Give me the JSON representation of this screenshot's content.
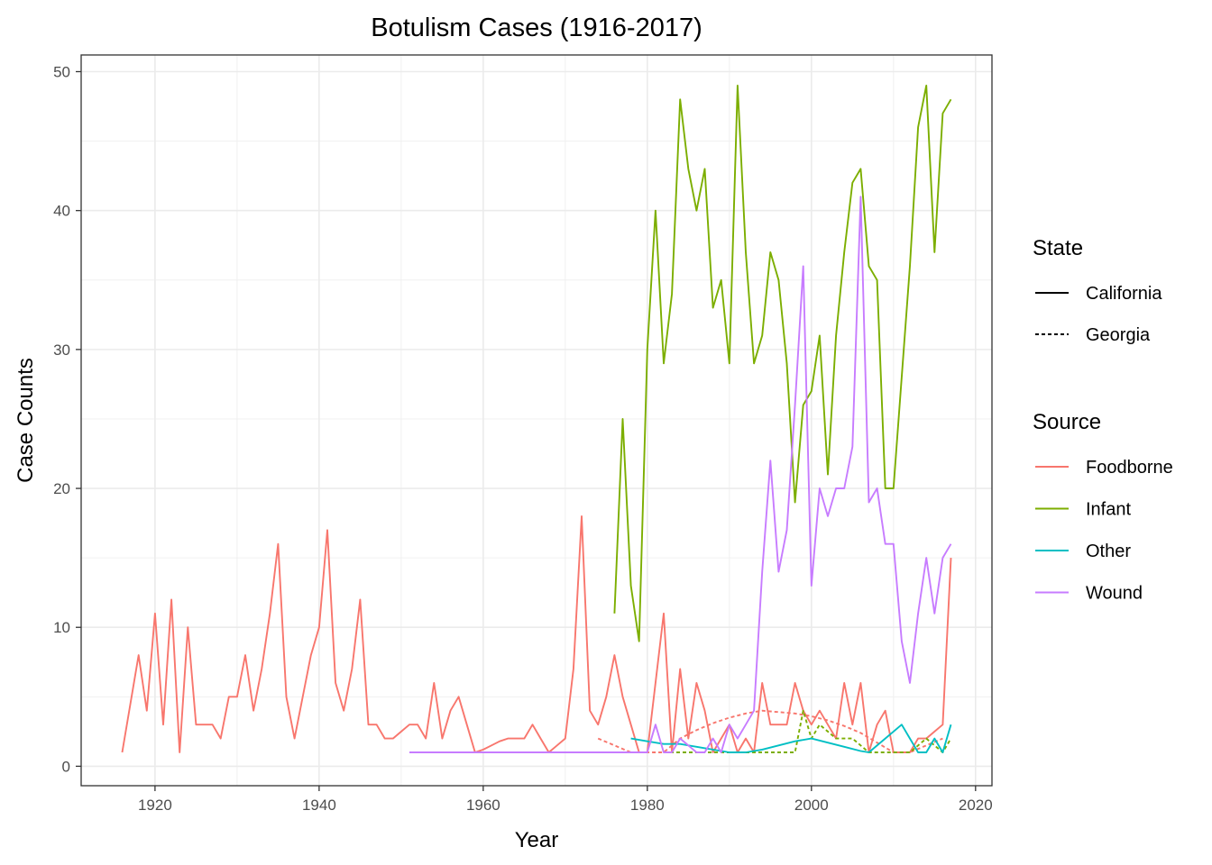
{
  "chart_data": {
    "type": "line",
    "title": "Botulism Cases (1916-2017)",
    "xlabel": "Year",
    "ylabel": "Case Counts",
    "xlim": [
      1911,
      2022
    ],
    "ylim": [
      -1.4,
      51.2
    ],
    "x_ticks": [
      1920,
      1940,
      1960,
      1980,
      2000,
      2020
    ],
    "y_ticks": [
      0,
      10,
      20,
      30,
      40,
      50
    ],
    "grid": true,
    "legends": [
      {
        "title": "State",
        "entries": [
          {
            "label": "California",
            "linetype": "solid"
          },
          {
            "label": "Georgia",
            "linetype": "dashed"
          }
        ]
      },
      {
        "title": "Source",
        "entries": [
          {
            "label": "Foodborne",
            "color": "#F8766D"
          },
          {
            "label": "Infant",
            "color": "#7CAE00"
          },
          {
            "label": "Other",
            "color": "#00BFC4"
          },
          {
            "label": "Wound",
            "color": "#C77CFF"
          }
        ]
      }
    ],
    "series": [
      {
        "source": "Foodborne",
        "state": "California",
        "color": "#F8766D",
        "linetype": "solid",
        "points": [
          [
            1916,
            1
          ],
          [
            1918,
            8
          ],
          [
            1919,
            4
          ],
          [
            1920,
            11
          ],
          [
            1921,
            3
          ],
          [
            1922,
            12
          ],
          [
            1923,
            1
          ],
          [
            1924,
            10
          ],
          [
            1925,
            3
          ],
          [
            1926,
            3
          ],
          [
            1927,
            3
          ],
          [
            1928,
            2
          ],
          [
            1929,
            5
          ],
          [
            1930,
            5
          ],
          [
            1931,
            8
          ],
          [
            1932,
            4
          ],
          [
            1933,
            7
          ],
          [
            1934,
            11
          ],
          [
            1935,
            16
          ],
          [
            1936,
            5
          ],
          [
            1937,
            2
          ],
          [
            1938,
            5
          ],
          [
            1939,
            8
          ],
          [
            1940,
            10
          ],
          [
            1941,
            17
          ],
          [
            1942,
            6
          ],
          [
            1943,
            4
          ],
          [
            1944,
            7
          ],
          [
            1945,
            12
          ],
          [
            1946,
            3
          ],
          [
            1947,
            3
          ],
          [
            1948,
            2
          ],
          [
            1949,
            2
          ],
          [
            1950,
            2.5
          ],
          [
            1951,
            3
          ],
          [
            1952,
            3
          ],
          [
            1953,
            2
          ],
          [
            1954,
            6
          ],
          [
            1955,
            2
          ],
          [
            1956,
            4
          ],
          [
            1957,
            5
          ],
          [
            1958,
            3
          ],
          [
            1959,
            1
          ],
          [
            1960,
            1.2
          ],
          [
            1961,
            1.5
          ],
          [
            1962,
            1.8
          ],
          [
            1963,
            2
          ],
          [
            1964,
            2
          ],
          [
            1965,
            2
          ],
          [
            1966,
            3
          ],
          [
            1967,
            2
          ],
          [
            1968,
            1
          ],
          [
            1969,
            1.5
          ],
          [
            1970,
            2
          ],
          [
            1971,
            7
          ],
          [
            1972,
            18
          ],
          [
            1973,
            4
          ],
          [
            1974,
            3
          ],
          [
            1975,
            5
          ],
          [
            1976,
            8
          ],
          [
            1977,
            5
          ],
          [
            1978,
            3
          ],
          [
            1979,
            1
          ],
          [
            1980,
            1
          ],
          [
            1981,
            6
          ],
          [
            1982,
            11
          ],
          [
            1983,
            1
          ],
          [
            1984,
            7
          ],
          [
            1985,
            2
          ],
          [
            1986,
            6
          ],
          [
            1987,
            4
          ],
          [
            1988,
            1
          ],
          [
            1989,
            2
          ],
          [
            1990,
            3
          ],
          [
            1991,
            1
          ],
          [
            1992,
            2
          ],
          [
            1993,
            1
          ],
          [
            1994,
            6
          ],
          [
            1995,
            3
          ],
          [
            1996,
            3
          ],
          [
            1997,
            3
          ],
          [
            1998,
            6
          ],
          [
            1999,
            4
          ],
          [
            2000,
            3
          ],
          [
            2001,
            4
          ],
          [
            2002,
            3
          ],
          [
            2003,
            2
          ],
          [
            2004,
            6
          ],
          [
            2005,
            3
          ],
          [
            2006,
            6
          ],
          [
            2007,
            1
          ],
          [
            2008,
            3
          ],
          [
            2009,
            4
          ],
          [
            2010,
            1
          ],
          [
            2011,
            1
          ],
          [
            2012,
            1
          ],
          [
            2013,
            2
          ],
          [
            2014,
            2
          ],
          [
            2015,
            2.5
          ],
          [
            2016,
            3
          ],
          [
            2017,
            15
          ]
        ]
      },
      {
        "source": "Foodborne",
        "state": "Georgia",
        "color": "#F8766D",
        "linetype": "dashed",
        "points": [
          [
            1974,
            2
          ],
          [
            1976,
            1.5
          ],
          [
            1978,
            1
          ],
          [
            1980,
            1
          ],
          [
            1982,
            1
          ],
          [
            1984,
            2
          ],
          [
            1986,
            2.6
          ],
          [
            1988,
            3.1
          ],
          [
            1990,
            3.5
          ],
          [
            1992,
            3.8
          ],
          [
            1994,
            4
          ],
          [
            1996,
            3.9
          ],
          [
            1998,
            3.8
          ],
          [
            2000,
            3.6
          ],
          [
            2002,
            3.3
          ],
          [
            2004,
            2.9
          ],
          [
            2006,
            2.4
          ],
          [
            2008,
            1.7
          ],
          [
            2010,
            1
          ],
          [
            2012,
            1
          ],
          [
            2014,
            1.5
          ],
          [
            2016,
            2
          ]
        ]
      },
      {
        "source": "Infant",
        "state": "California",
        "color": "#7CAE00",
        "linetype": "solid",
        "points": [
          [
            1976,
            11
          ],
          [
            1977,
            25
          ],
          [
            1978,
            13
          ],
          [
            1979,
            9
          ],
          [
            1980,
            30
          ],
          [
            1981,
            40
          ],
          [
            1982,
            29
          ],
          [
            1983,
            34
          ],
          [
            1984,
            48
          ],
          [
            1985,
            43
          ],
          [
            1986,
            40
          ],
          [
            1987,
            43
          ],
          [
            1988,
            33
          ],
          [
            1989,
            35
          ],
          [
            1990,
            29
          ],
          [
            1991,
            49
          ],
          [
            1992,
            37
          ],
          [
            1993,
            29
          ],
          [
            1994,
            31
          ],
          [
            1995,
            37
          ],
          [
            1996,
            35
          ],
          [
            1997,
            29
          ],
          [
            1998,
            19
          ],
          [
            1999,
            26
          ],
          [
            2000,
            27
          ],
          [
            2001,
            31
          ],
          [
            2002,
            21
          ],
          [
            2003,
            31
          ],
          [
            2004,
            37
          ],
          [
            2005,
            42
          ],
          [
            2006,
            43
          ],
          [
            2007,
            36
          ],
          [
            2008,
            35
          ],
          [
            2009,
            20
          ],
          [
            2010,
            20
          ],
          [
            2011,
            28
          ],
          [
            2012,
            36
          ],
          [
            2013,
            46
          ],
          [
            2014,
            49
          ],
          [
            2015,
            37
          ],
          [
            2016,
            47
          ],
          [
            2017,
            48
          ]
        ]
      },
      {
        "source": "Infant",
        "state": "Georgia",
        "color": "#7CAE00",
        "linetype": "dashed",
        "points": [
          [
            1982,
            1
          ],
          [
            1984,
            1
          ],
          [
            1986,
            1
          ],
          [
            1988,
            1
          ],
          [
            1990,
            1
          ],
          [
            1992,
            1
          ],
          [
            1994,
            1
          ],
          [
            1996,
            1
          ],
          [
            1998,
            1
          ],
          [
            1999,
            4
          ],
          [
            2000,
            2
          ],
          [
            2001,
            3
          ],
          [
            2002,
            2.5
          ],
          [
            2003,
            2
          ],
          [
            2005,
            2
          ],
          [
            2007,
            1
          ],
          [
            2009,
            1
          ],
          [
            2010,
            1
          ],
          [
            2012,
            1
          ],
          [
            2014,
            2
          ],
          [
            2016,
            1
          ],
          [
            2017,
            2
          ]
        ]
      },
      {
        "source": "Other",
        "state": "California",
        "color": "#00BFC4",
        "linetype": "solid",
        "points": [
          [
            1978,
            2
          ],
          [
            1980,
            1.8
          ],
          [
            1982,
            1.6
          ],
          [
            1984,
            1.6
          ],
          [
            1986,
            1.4
          ],
          [
            1988,
            1.2
          ],
          [
            1990,
            1
          ],
          [
            1992,
            1
          ],
          [
            1994,
            1.2
          ],
          [
            1996,
            1.5
          ],
          [
            1998,
            1.8
          ],
          [
            2000,
            2
          ],
          [
            2002,
            1.7
          ],
          [
            2004,
            1.4
          ],
          [
            2006,
            1.1
          ],
          [
            2007,
            1
          ],
          [
            2009,
            2
          ],
          [
            2011,
            3
          ],
          [
            2012,
            2
          ],
          [
            2013,
            1
          ],
          [
            2014,
            1
          ],
          [
            2015,
            2
          ],
          [
            2016,
            1
          ],
          [
            2017,
            3
          ]
        ]
      },
      {
        "source": "Wound",
        "state": "California",
        "color": "#C77CFF",
        "linetype": "solid",
        "points": [
          [
            1951,
            1
          ],
          [
            1955,
            1
          ],
          [
            1960,
            1
          ],
          [
            1965,
            1
          ],
          [
            1970,
            1
          ],
          [
            1975,
            1
          ],
          [
            1980,
            1
          ],
          [
            1981,
            3
          ],
          [
            1982,
            1
          ],
          [
            1983,
            1
          ],
          [
            1984,
            2
          ],
          [
            1985,
            1.5
          ],
          [
            1986,
            1
          ],
          [
            1987,
            1
          ],
          [
            1988,
            2
          ],
          [
            1989,
            1
          ],
          [
            1990,
            3
          ],
          [
            1991,
            2
          ],
          [
            1992,
            3
          ],
          [
            1993,
            4
          ],
          [
            1994,
            14
          ],
          [
            1995,
            22
          ],
          [
            1996,
            14
          ],
          [
            1997,
            17
          ],
          [
            1998,
            26
          ],
          [
            1999,
            36
          ],
          [
            2000,
            13
          ],
          [
            2001,
            20
          ],
          [
            2002,
            18
          ],
          [
            2003,
            20
          ],
          [
            2004,
            20
          ],
          [
            2005,
            23
          ],
          [
            2006,
            41
          ],
          [
            2007,
            19
          ],
          [
            2008,
            20
          ],
          [
            2009,
            16
          ],
          [
            2010,
            16
          ],
          [
            2011,
            9
          ],
          [
            2012,
            6
          ],
          [
            2013,
            11
          ],
          [
            2014,
            15
          ],
          [
            2015,
            11
          ],
          [
            2016,
            15
          ],
          [
            2017,
            16
          ]
        ]
      }
    ]
  }
}
